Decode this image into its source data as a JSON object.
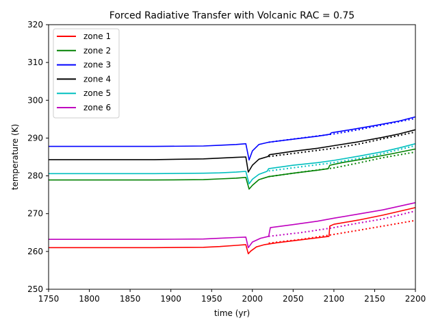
{
  "chart_data": {
    "type": "line",
    "title": "Forced Radiative Transfer with Volcanic RAC = 0.75",
    "xlabel": "time (yr)",
    "ylabel": "temperature (K)",
    "xlim": [
      1750,
      2200
    ],
    "ylim": [
      250,
      320
    ],
    "xticks": [
      "1750",
      "1800",
      "1850",
      "1900",
      "1950",
      "2000",
      "2050",
      "2100",
      "2150",
      "2200"
    ],
    "yticks": [
      "250",
      "260",
      "270",
      "280",
      "290",
      "300",
      "310",
      "320"
    ],
    "legend_position": "upper-left",
    "grid": false,
    "series": [
      {
        "name": "zone 1",
        "color": "#ff0000",
        "solid": [
          [
            1750,
            261.0
          ],
          [
            1880,
            261.0
          ],
          [
            1940,
            261.1
          ],
          [
            1960,
            261.3
          ],
          [
            1980,
            261.6
          ],
          [
            1992,
            261.8
          ],
          [
            1995,
            259.4
          ],
          [
            1998,
            260.1
          ],
          [
            2005,
            261.2
          ],
          [
            2015,
            261.8
          ],
          [
            2030,
            262.3
          ],
          [
            2060,
            263.1
          ],
          [
            2090,
            263.9
          ],
          [
            2094,
            264.0
          ],
          [
            2095,
            266.7
          ],
          [
            2100,
            267.2
          ],
          [
            2130,
            268.3
          ],
          [
            2160,
            269.6
          ],
          [
            2200,
            271.6
          ]
        ],
        "dotted": [
          [
            2020,
            262.2
          ],
          [
            2060,
            263.2
          ],
          [
            2100,
            264.5
          ],
          [
            2130,
            265.6
          ],
          [
            2160,
            266.7
          ],
          [
            2200,
            268.2
          ]
        ]
      },
      {
        "name": "zone 2",
        "color": "#008000",
        "solid": [
          [
            1750,
            278.9
          ],
          [
            1880,
            278.9
          ],
          [
            1940,
            279.0
          ],
          [
            1960,
            279.2
          ],
          [
            1980,
            279.4
          ],
          [
            1992,
            279.6
          ],
          [
            1996,
            276.5
          ],
          [
            2000,
            277.5
          ],
          [
            2008,
            279.0
          ],
          [
            2020,
            279.8
          ],
          [
            2050,
            280.7
          ],
          [
            2080,
            281.5
          ],
          [
            2093,
            281.9
          ],
          [
            2095,
            282.8
          ],
          [
            2110,
            283.5
          ],
          [
            2140,
            284.6
          ],
          [
            2170,
            285.8
          ],
          [
            2200,
            287.1
          ]
        ],
        "dotted": [
          [
            2020,
            279.8
          ],
          [
            2060,
            281.0
          ],
          [
            2100,
            282.1
          ],
          [
            2130,
            283.4
          ],
          [
            2160,
            284.8
          ],
          [
            2200,
            286.3
          ]
        ]
      },
      {
        "name": "zone 3",
        "color": "#0000ff",
        "solid": [
          [
            1750,
            287.8
          ],
          [
            1880,
            287.8
          ],
          [
            1940,
            287.9
          ],
          [
            1960,
            288.1
          ],
          [
            1980,
            288.3
          ],
          [
            1992,
            288.5
          ],
          [
            1996,
            284.2
          ],
          [
            2000,
            286.6
          ],
          [
            2008,
            288.3
          ],
          [
            2020,
            288.9
          ],
          [
            2050,
            289.7
          ],
          [
            2080,
            290.5
          ],
          [
            2095,
            291.0
          ],
          [
            2097,
            291.4
          ],
          [
            2120,
            292.2
          ],
          [
            2150,
            293.3
          ],
          [
            2180,
            294.5
          ],
          [
            2200,
            295.6
          ]
        ],
        "dotted": [
          [
            2020,
            288.9
          ],
          [
            2060,
            290.0
          ],
          [
            2100,
            291.1
          ],
          [
            2130,
            292.2
          ],
          [
            2160,
            293.5
          ],
          [
            2200,
            295.2
          ]
        ]
      },
      {
        "name": "zone 4",
        "color": "#000000",
        "solid": [
          [
            1750,
            284.3
          ],
          [
            1880,
            284.3
          ],
          [
            1940,
            284.5
          ],
          [
            1960,
            284.7
          ],
          [
            1980,
            284.9
          ],
          [
            1992,
            285.0
          ],
          [
            1995,
            281.0
          ],
          [
            2000,
            282.8
          ],
          [
            2008,
            284.4
          ],
          [
            2019,
            285.1
          ],
          [
            2021,
            285.6
          ],
          [
            2050,
            286.5
          ],
          [
            2080,
            287.3
          ],
          [
            2100,
            288.0
          ],
          [
            2130,
            289.0
          ],
          [
            2160,
            290.2
          ],
          [
            2180,
            291.1
          ],
          [
            2200,
            292.2
          ]
        ],
        "dotted": [
          [
            2020,
            285.1
          ],
          [
            2060,
            286.2
          ],
          [
            2100,
            287.3
          ],
          [
            2130,
            288.4
          ],
          [
            2160,
            289.8
          ],
          [
            2200,
            291.6
          ]
        ]
      },
      {
        "name": "zone 5",
        "color": "#00bfbf",
        "solid": [
          [
            1750,
            280.6
          ],
          [
            1880,
            280.6
          ],
          [
            1940,
            280.7
          ],
          [
            1960,
            280.8
          ],
          [
            1980,
            281.0
          ],
          [
            1992,
            281.2
          ],
          [
            1996,
            277.9
          ],
          [
            2000,
            279.1
          ],
          [
            2008,
            280.4
          ],
          [
            2018,
            281.2
          ],
          [
            2020,
            281.9
          ],
          [
            2050,
            282.8
          ],
          [
            2080,
            283.5
          ],
          [
            2100,
            284.1
          ],
          [
            2130,
            285.2
          ],
          [
            2160,
            286.4
          ],
          [
            2180,
            287.4
          ],
          [
            2200,
            288.5
          ]
        ],
        "dotted": [
          [
            2020,
            281.3
          ],
          [
            2060,
            282.4
          ],
          [
            2100,
            283.5
          ],
          [
            2130,
            284.6
          ],
          [
            2160,
            285.9
          ],
          [
            2200,
            288.0
          ]
        ]
      },
      {
        "name": "zone 6",
        "color": "#bf00bf",
        "solid": [
          [
            1750,
            263.2
          ],
          [
            1880,
            263.2
          ],
          [
            1940,
            263.3
          ],
          [
            1960,
            263.5
          ],
          [
            1980,
            263.7
          ],
          [
            1992,
            263.8
          ],
          [
            1995,
            261.0
          ],
          [
            2000,
            262.5
          ],
          [
            2010,
            263.5
          ],
          [
            2020,
            264.0
          ],
          [
            2022,
            266.3
          ],
          [
            2050,
            267.1
          ],
          [
            2080,
            268.0
          ],
          [
            2100,
            268.8
          ],
          [
            2130,
            269.9
          ],
          [
            2160,
            271.0
          ],
          [
            2200,
            272.9
          ]
        ],
        "dotted": [
          [
            2020,
            264.0
          ],
          [
            2060,
            265.0
          ],
          [
            2100,
            266.3
          ],
          [
            2130,
            267.5
          ],
          [
            2160,
            268.6
          ],
          [
            2200,
            270.7
          ]
        ]
      }
    ]
  }
}
